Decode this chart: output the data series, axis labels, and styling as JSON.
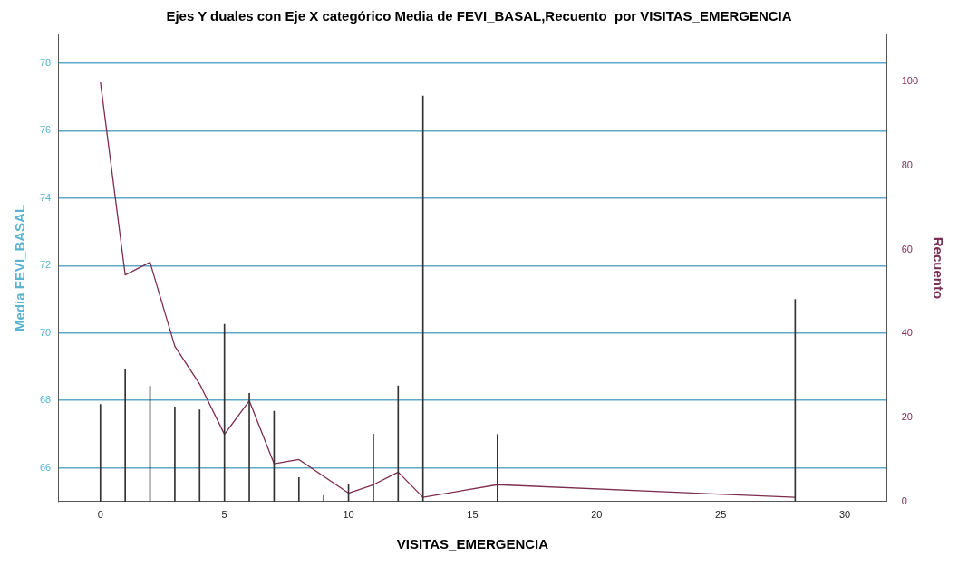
{
  "chart_data": {
    "type": "bar",
    "title": "Ejes Y duales con Eje X categórico Media de FEVI_BASAL,Recuento  por VISITAS_EMERGENCIA",
    "xlabel": "VISITAS_EMERGENCIA",
    "ylabel": "Media FEVI_BASAL",
    "y2label": "Recuento",
    "x": [
      0,
      1,
      2,
      3,
      4,
      5,
      6,
      7,
      8,
      9,
      10,
      11,
      12,
      13,
      16,
      28
    ],
    "series": [
      {
        "color": "#333333",
        "values": [
          67.88,
          68.93,
          68.42,
          67.81,
          67.72,
          70.26,
          68.21,
          67.68,
          65.71,
          65.18,
          65.5,
          67.0,
          68.43,
          77.03,
          66.99,
          71.0
        ]
      },
      {
        "type": "line",
        "axis": "y2",
        "color": "#7d2d4f",
        "values": [
          100,
          54,
          57,
          37,
          28,
          16,
          24,
          9,
          10,
          6,
          2,
          4,
          7,
          1,
          4,
          1
        ]
      }
    ],
    "xlim": [
      -1.7,
      31.7
    ],
    "xticks": [
      0,
      5,
      10,
      15,
      20,
      25,
      30
    ],
    "ylim": [
      65,
      78.86
    ],
    "yticks": [
      66,
      68,
      70,
      72,
      74,
      76,
      78
    ],
    "y2lim": [
      0,
      111.3
    ],
    "y2ticks": [
      0,
      20,
      40,
      60,
      80,
      100
    ],
    "grid": "y",
    "legend": false,
    "marker": "none",
    "line_style": "solid"
  }
}
